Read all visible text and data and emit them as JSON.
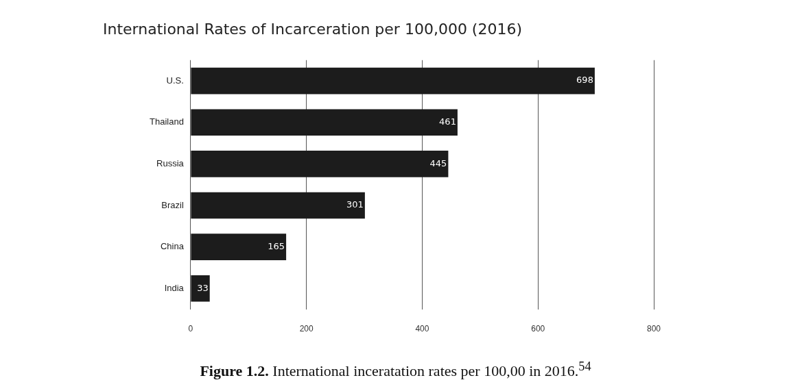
{
  "chart_data": {
    "type": "bar",
    "orientation": "horizontal",
    "title": "International Rates of Incarceration per 100,000 (2016)",
    "categories": [
      "U.S.",
      "Thailand",
      "Russia",
      "Brazil",
      "China",
      "India"
    ],
    "values": [
      698,
      461,
      445,
      301,
      165,
      33
    ],
    "color": "#1c1c1c",
    "data_labels": true,
    "xlim": [
      0,
      800
    ],
    "xticks": [
      0,
      200,
      400,
      600,
      800
    ],
    "grid": "x",
    "annotations": [
      "Figure 1.2. International inceratation rates per 100,00 in 2016.$^{54}$"
    ]
  }
}
